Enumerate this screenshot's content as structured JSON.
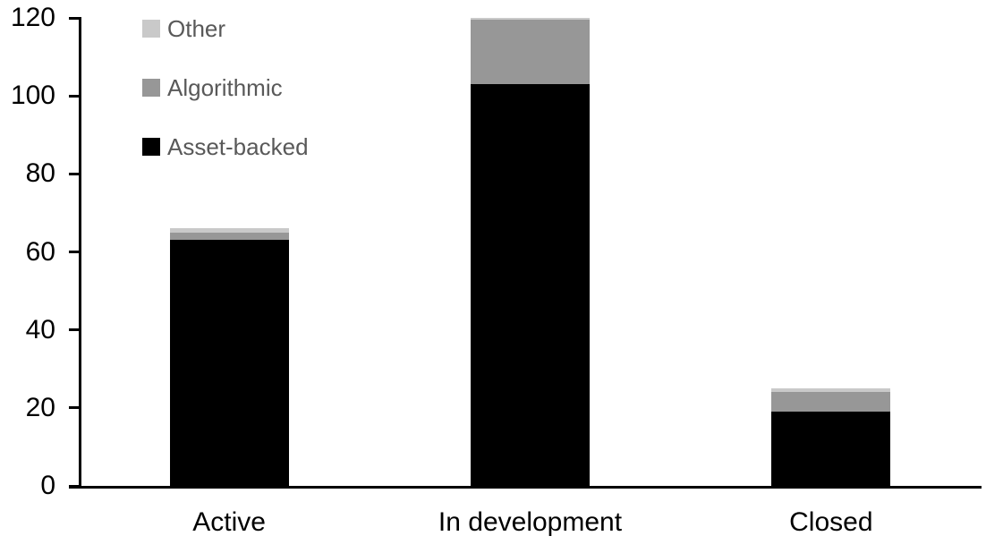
{
  "chart_data": {
    "type": "bar",
    "stacked": true,
    "title": "",
    "xlabel": "",
    "ylabel": "",
    "categories": [
      "Active",
      "In development",
      "Closed"
    ],
    "series": [
      {
        "name": "Other",
        "color": "#c9c9c9",
        "values": [
          1,
          0,
          1
        ]
      },
      {
        "name": "Algorithmic",
        "color": "#979797",
        "values": [
          2,
          17,
          5
        ]
      },
      {
        "name": "Asset-backed",
        "color": "#000000",
        "values": [
          63,
          103,
          19
        ]
      }
    ],
    "totals": [
      66,
      120,
      25
    ],
    "ylim": [
      0,
      120
    ],
    "yticks": [
      0,
      20,
      40,
      60,
      80,
      100,
      120
    ],
    "grid": false,
    "legend_position": "top-left",
    "legend_text_color": "#595959",
    "axis_color": "#000000",
    "background_color": "#ffffff"
  }
}
